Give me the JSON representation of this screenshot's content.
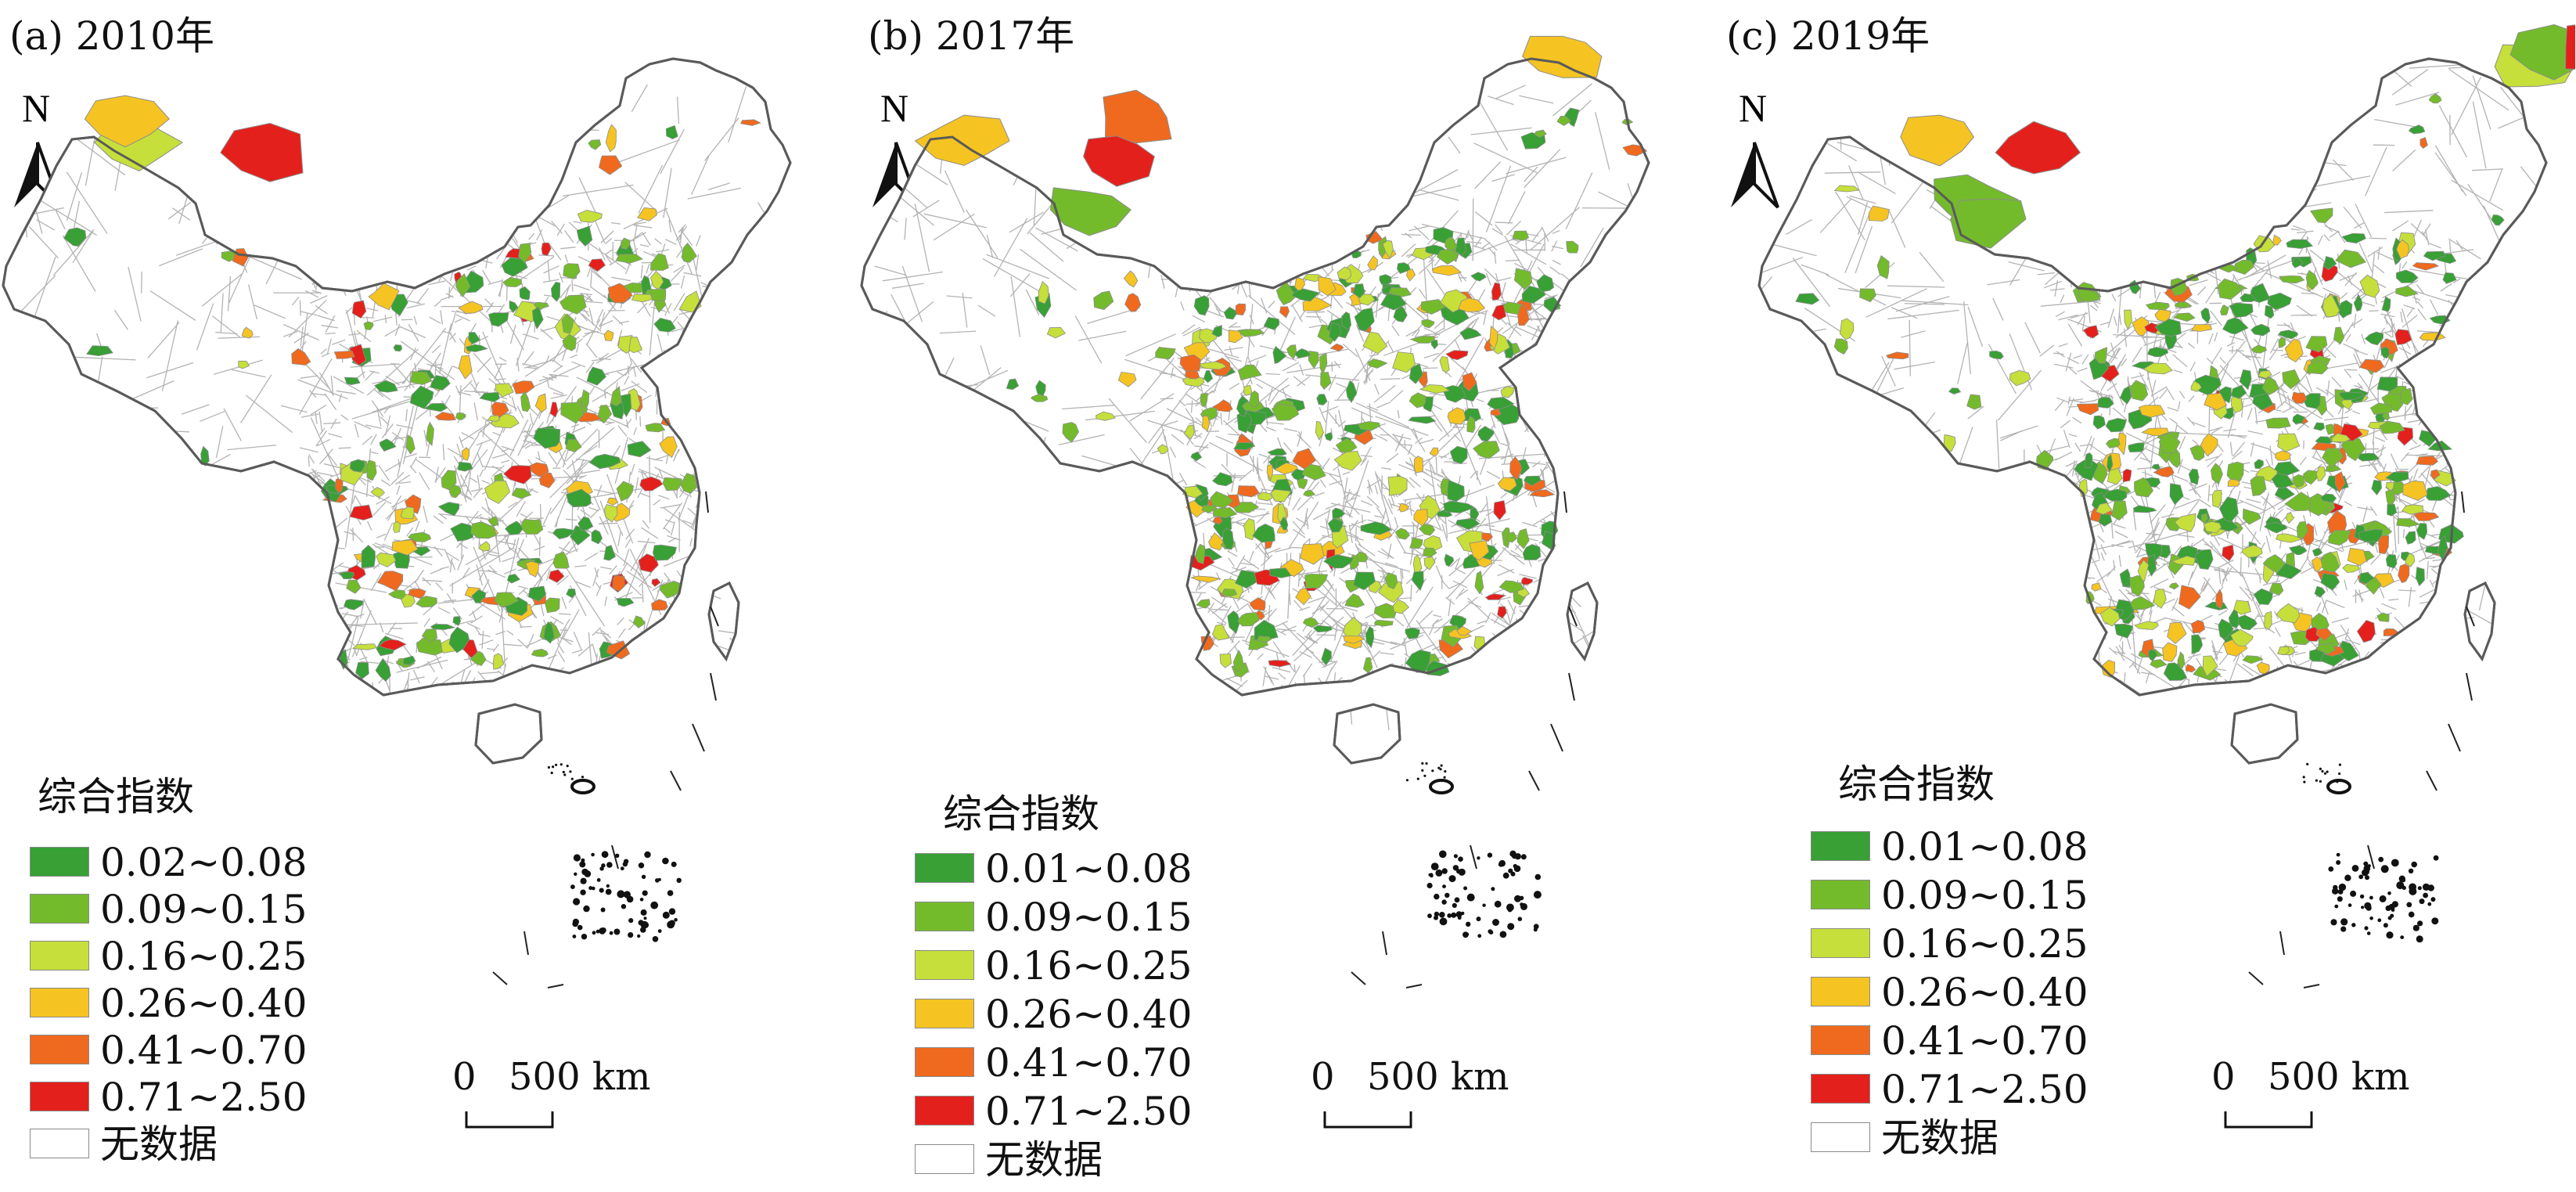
{
  "colors": {
    "class_1": "#38a035",
    "class_2": "#74bb2c",
    "class_3": "#c6df3a",
    "class_4": "#f5c422",
    "class_5": "#ef6a1e",
    "class_6": "#e4201c",
    "no_data": "#ffffff",
    "boundary": "#b3b3b3",
    "outline": "#5a5a5a"
  },
  "panels": [
    {
      "title": "(a) 2010年",
      "legend_title": "综合指数",
      "legend": [
        "0.02~0.08",
        "0.09~0.15",
        "0.16~0.25",
        "0.26~0.40",
        "0.41~0.70",
        "0.71~2.50",
        "无数据"
      ],
      "north_label": "N",
      "scale_zero": "0",
      "scale_length": "500 km"
    },
    {
      "title": "(b) 2017年",
      "legend_title": "综合指数",
      "legend": [
        "0.01~0.08",
        "0.09~0.15",
        "0.16~0.25",
        "0.26~0.40",
        "0.41~0.70",
        "0.71~2.50",
        "无数据"
      ],
      "north_label": "N",
      "scale_zero": "0",
      "scale_length": "500 km"
    },
    {
      "title": "(c) 2019年",
      "legend_title": "综合指数",
      "legend": [
        "0.01~0.08",
        "0.09~0.15",
        "0.16~0.25",
        "0.26~0.40",
        "0.41~0.70",
        "0.71~2.50",
        "无数据"
      ],
      "north_label": "N",
      "scale_zero": "0",
      "scale_length": "500 km"
    }
  ]
}
